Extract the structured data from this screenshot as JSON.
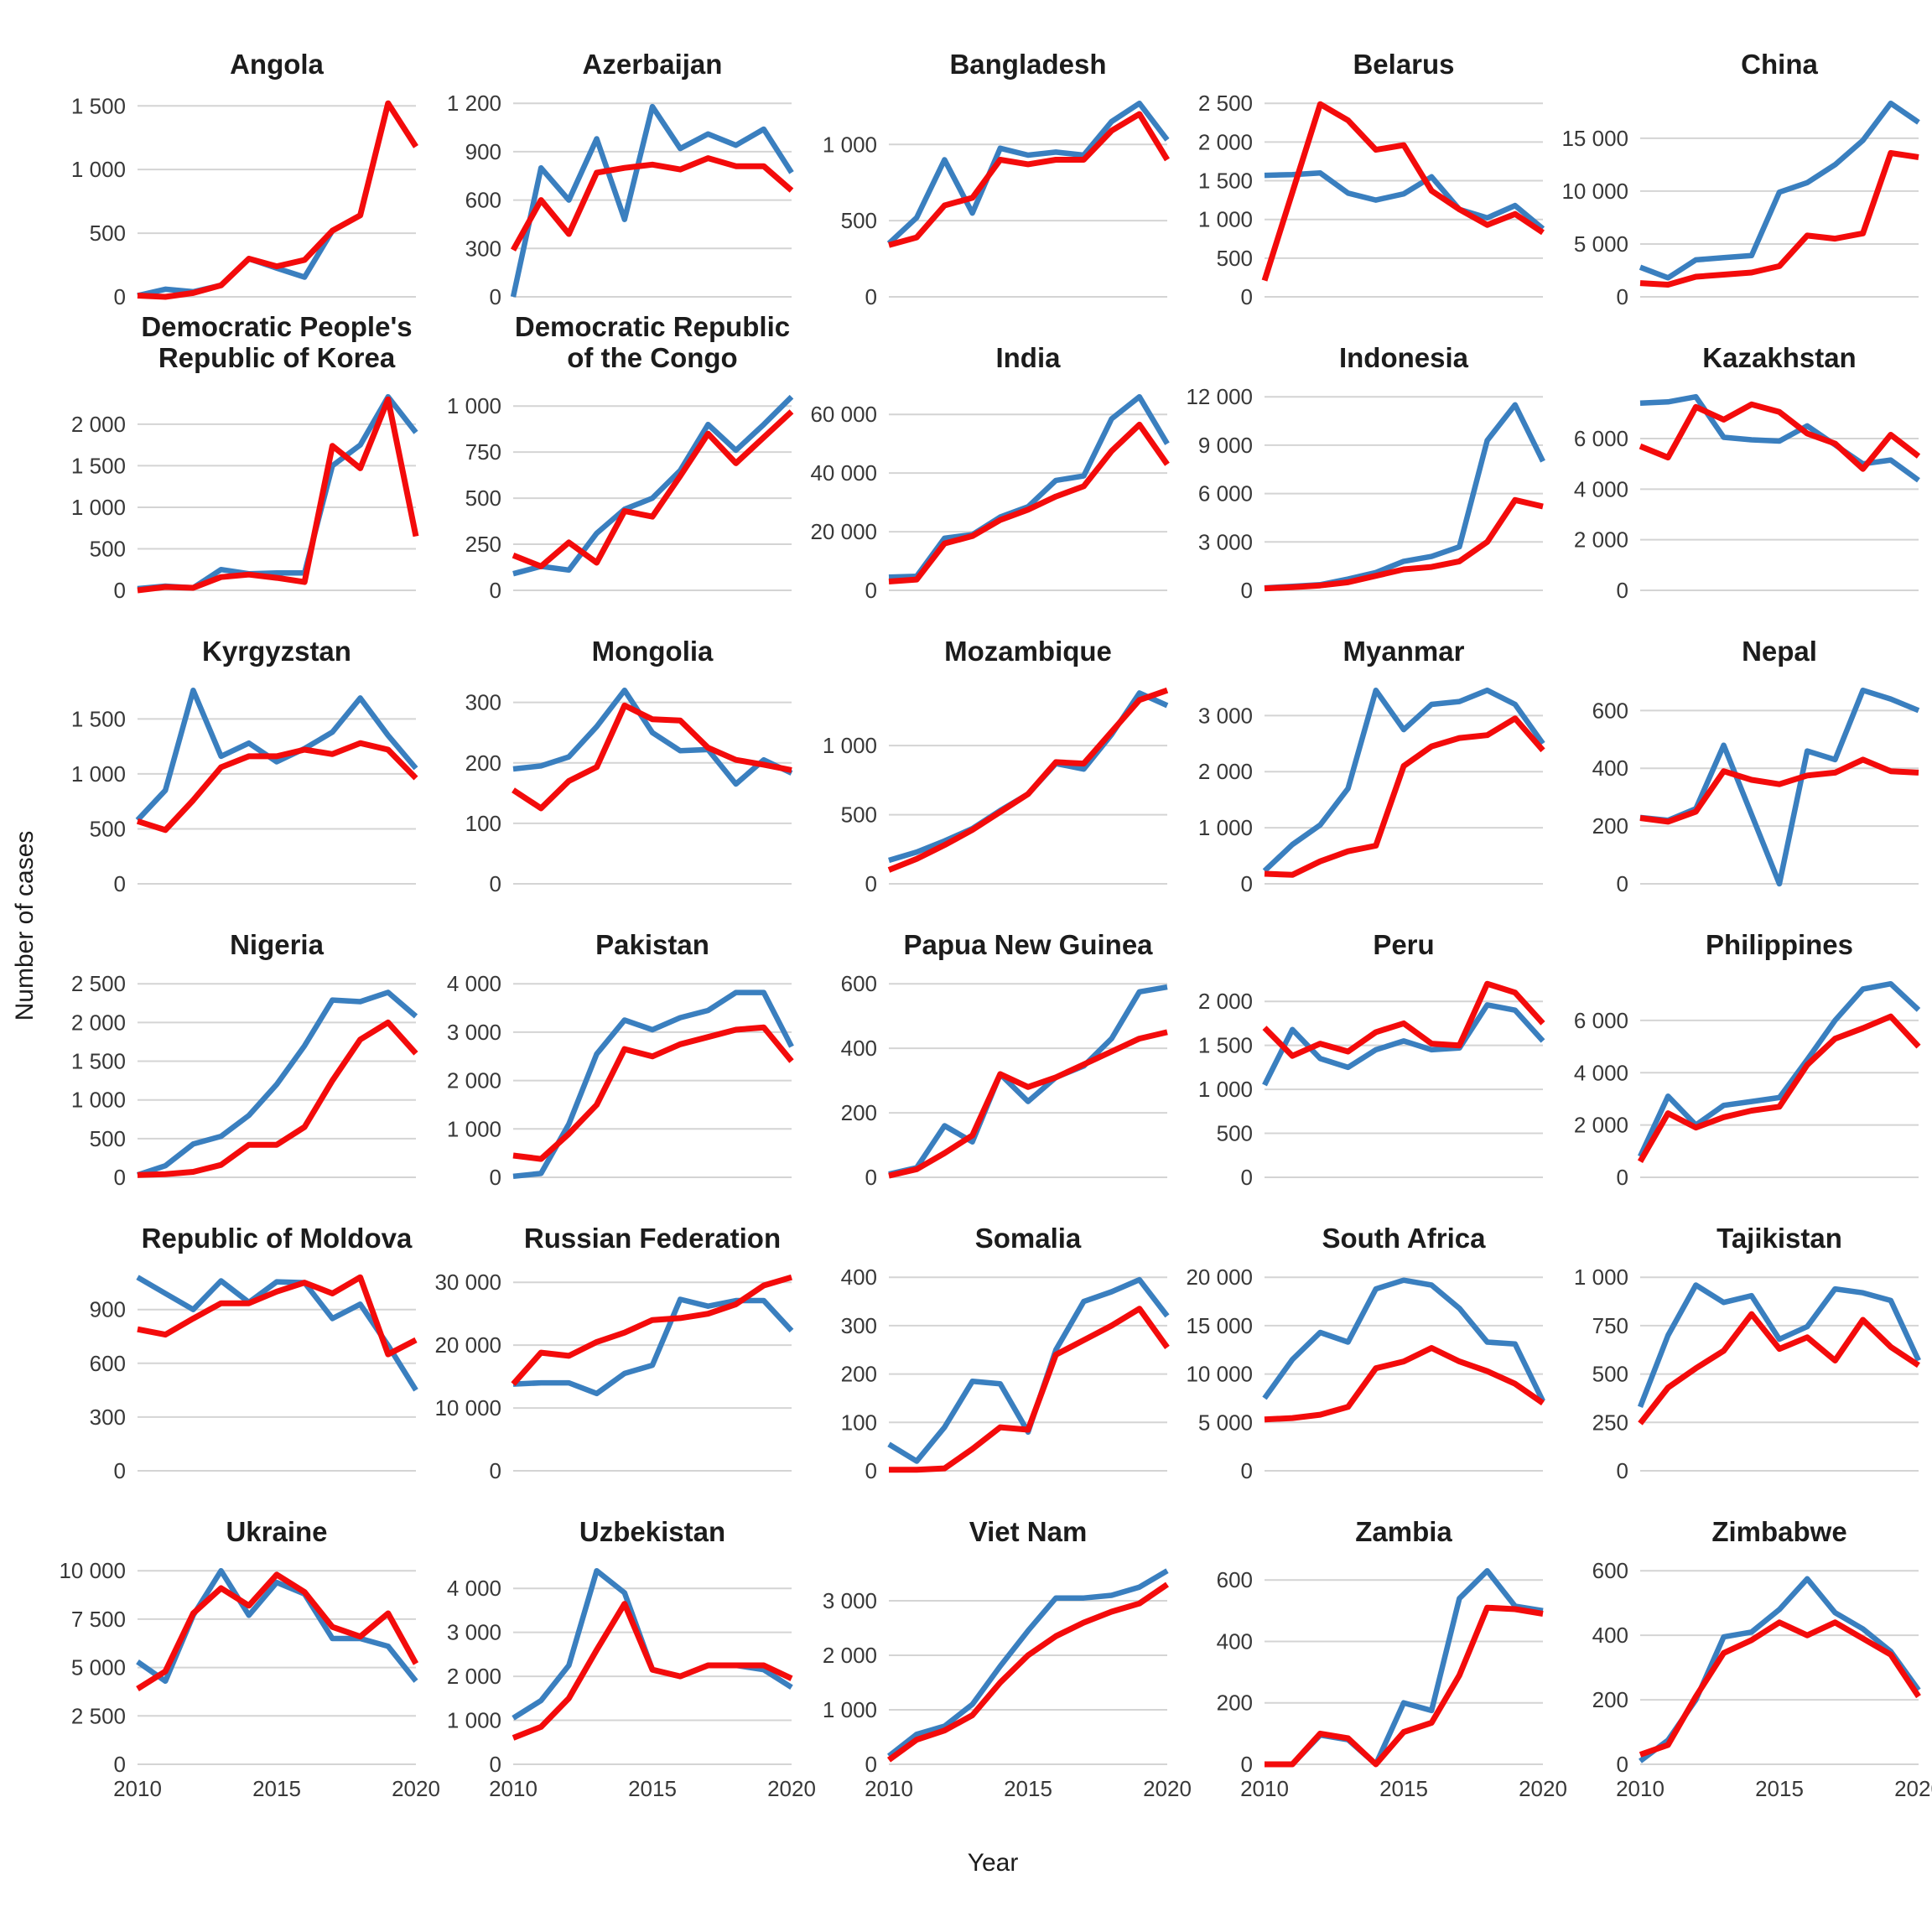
{
  "figure": {
    "ylabel": "Number of cases",
    "xlabel": "Year"
  },
  "style": {
    "blue": "#3a7fbf",
    "red": "#f30b0b",
    "grid_color": "#d4d4d4",
    "tick_color": "#383838",
    "title_color": "#1c1c1c",
    "background": "#ffffff"
  },
  "chart_data": {
    "type": "line",
    "x": [
      2010,
      2011,
      2012,
      2013,
      2014,
      2015,
      2016,
      2017,
      2018,
      2019,
      2020
    ],
    "x_ticks": [
      2010,
      2015,
      2020
    ],
    "legend": "none",
    "grid": "horizontal-only",
    "series_names": [
      "blue-series",
      "red-series"
    ],
    "facets": [
      {
        "title": "Angola",
        "yticks": [
          0,
          500,
          1000,
          1500
        ],
        "blue": [
          10,
          60,
          40,
          90,
          300,
          225,
          155,
          520,
          640,
          1520,
          1180
        ],
        "red": [
          10,
          0,
          30,
          90,
          300,
          240,
          290,
          520,
          640,
          1520,
          1180
        ]
      },
      {
        "title": "Azerbaijan",
        "yticks": [
          0,
          300,
          600,
          900,
          1200
        ],
        "blue": [
          0,
          800,
          600,
          980,
          480,
          1180,
          920,
          1010,
          940,
          1040,
          770
        ],
        "red": [
          290,
          600,
          390,
          770,
          800,
          820,
          790,
          860,
          810,
          810,
          660
        ]
      },
      {
        "title": "Bangladesh",
        "yticks": [
          0,
          500,
          1000
        ],
        "blue": [
          350,
          520,
          900,
          550,
          975,
          930,
          950,
          930,
          1150,
          1270,
          1030
        ],
        "red": [
          340,
          390,
          600,
          650,
          900,
          870,
          900,
          900,
          1090,
          1200,
          900
        ]
      },
      {
        "title": "Belarus",
        "yticks": [
          0,
          500,
          1000,
          1500,
          2000,
          2500
        ],
        "blue": [
          1570,
          1580,
          1600,
          1340,
          1250,
          1330,
          1550,
          1130,
          1020,
          1180,
          880
        ],
        "red": [
          210,
          1350,
          2490,
          2280,
          1900,
          1960,
          1370,
          1130,
          930,
          1070,
          830
        ]
      },
      {
        "title": "China",
        "yticks": [
          0,
          5000,
          10000,
          15000
        ],
        "blue": [
          2800,
          1800,
          3500,
          3700,
          3900,
          9900,
          10800,
          12500,
          14800,
          18300,
          16500
        ],
        "red": [
          1300,
          1150,
          1900,
          2100,
          2300,
          2900,
          5800,
          5500,
          6000,
          13600,
          13200
        ]
      },
      {
        "title": "Democratic People's Republic of Korea",
        "yticks": [
          0,
          500,
          1000,
          1500,
          2000
        ],
        "blue": [
          20,
          50,
          30,
          250,
          200,
          210,
          210,
          1500,
          1750,
          2330,
          1900
        ],
        "red": [
          0,
          40,
          30,
          160,
          190,
          150,
          100,
          1740,
          1470,
          2300,
          650
        ]
      },
      {
        "title": "Democratic Republic of the Congo",
        "yticks": [
          0,
          250,
          500,
          750,
          1000
        ],
        "blue": [
          90,
          130,
          110,
          310,
          440,
          500,
          650,
          900,
          760,
          900,
          1050
        ],
        "red": [
          190,
          130,
          260,
          150,
          430,
          400,
          620,
          850,
          690,
          830,
          970
        ]
      },
      {
        "title": "India",
        "yticks": [
          0,
          20000,
          40000,
          60000
        ],
        "blue": [
          4500,
          4800,
          17800,
          19000,
          25000,
          28500,
          37500,
          39000,
          58500,
          66000,
          50000
        ],
        "red": [
          3000,
          3700,
          16000,
          18500,
          24000,
          27500,
          32000,
          35500,
          47500,
          56500,
          43000
        ]
      },
      {
        "title": "Indonesia",
        "yticks": [
          0,
          3000,
          6000,
          9000,
          12000
        ],
        "blue": [
          150,
          250,
          350,
          700,
          1100,
          1800,
          2100,
          2700,
          9300,
          11500,
          8000
        ],
        "red": [
          120,
          200,
          300,
          500,
          900,
          1300,
          1450,
          1800,
          3000,
          5600,
          5200
        ]
      },
      {
        "title": "Kazakhstan",
        "yticks": [
          0,
          2000,
          4000,
          6000
        ],
        "blue": [
          7400,
          7450,
          7650,
          6050,
          5950,
          5900,
          6500,
          5750,
          5000,
          5150,
          4350
        ],
        "red": [
          5700,
          5250,
          7250,
          6750,
          7350,
          7050,
          6200,
          5800,
          4800,
          6150,
          5300
        ]
      },
      {
        "title": "Kyrgyzstan",
        "yticks": [
          0,
          500,
          1000,
          1500
        ],
        "blue": [
          580,
          850,
          1760,
          1160,
          1280,
          1110,
          1230,
          1380,
          1690,
          1350,
          1050
        ],
        "red": [
          570,
          490,
          760,
          1060,
          1160,
          1160,
          1220,
          1180,
          1280,
          1220,
          960
        ]
      },
      {
        "title": "Mongolia",
        "yticks": [
          0,
          100,
          200,
          300
        ],
        "blue": [
          190,
          195,
          210,
          260,
          320,
          250,
          220,
          222,
          165,
          205,
          183
        ],
        "red": [
          155,
          125,
          170,
          193,
          295,
          272,
          270,
          225,
          205,
          197,
          188
        ]
      },
      {
        "title": "Mozambique",
        "yticks": [
          0,
          500,
          1000
        ],
        "blue": [
          170,
          230,
          310,
          400,
          530,
          650,
          870,
          830,
          1080,
          1380,
          1290
        ],
        "red": [
          100,
          180,
          280,
          390,
          520,
          650,
          880,
          870,
          1100,
          1330,
          1400
        ]
      },
      {
        "title": "Myanmar",
        "yticks": [
          0,
          1000,
          2000,
          3000
        ],
        "blue": [
          230,
          700,
          1050,
          1700,
          3450,
          2750,
          3200,
          3250,
          3450,
          3200,
          2500
        ],
        "red": [
          180,
          160,
          400,
          580,
          680,
          2100,
          2450,
          2600,
          2650,
          2950,
          2380
        ]
      },
      {
        "title": "Nepal",
        "yticks": [
          0,
          200,
          400,
          600
        ],
        "blue": [
          230,
          220,
          260,
          480,
          240,
          0,
          460,
          430,
          670,
          640,
          600
        ],
        "red": [
          228,
          215,
          250,
          390,
          360,
          345,
          375,
          385,
          430,
          390,
          385
        ]
      },
      {
        "title": "Nigeria",
        "yticks": [
          0,
          500,
          1000,
          1500,
          2000,
          2500
        ],
        "blue": [
          30,
          150,
          430,
          530,
          800,
          1200,
          1700,
          2290,
          2270,
          2390,
          2080
        ],
        "red": [
          30,
          40,
          70,
          160,
          420,
          420,
          650,
          1250,
          1780,
          2000,
          1600
        ]
      },
      {
        "title": "Pakistan",
        "yticks": [
          0,
          1000,
          2000,
          3000,
          4000
        ],
        "blue": [
          20,
          80,
          1100,
          2550,
          3250,
          3050,
          3300,
          3450,
          3820,
          3820,
          2700
        ],
        "red": [
          450,
          380,
          900,
          1500,
          2650,
          2500,
          2750,
          2900,
          3050,
          3100,
          2400
        ]
      },
      {
        "title": "Papua New Guinea",
        "yticks": [
          0,
          200,
          400,
          600
        ],
        "blue": [
          10,
          30,
          160,
          110,
          320,
          235,
          310,
          345,
          430,
          575,
          590
        ],
        "red": [
          5,
          25,
          75,
          130,
          320,
          280,
          310,
          350,
          390,
          430,
          450
        ]
      },
      {
        "title": "Peru",
        "yticks": [
          0,
          500,
          1000,
          1500,
          2000
        ],
        "blue": [
          1050,
          1680,
          1350,
          1250,
          1450,
          1550,
          1450,
          1470,
          1960,
          1900,
          1550
        ],
        "red": [
          1700,
          1380,
          1520,
          1430,
          1650,
          1750,
          1520,
          1500,
          2200,
          2100,
          1750
        ]
      },
      {
        "title": "Philippines",
        "yticks": [
          0,
          2000,
          4000,
          6000
        ],
        "blue": [
          800,
          3100,
          2000,
          2750,
          2900,
          3050,
          4500,
          6000,
          7200,
          7400,
          6400
        ],
        "red": [
          600,
          2450,
          1900,
          2300,
          2550,
          2700,
          4300,
          5300,
          5700,
          6150,
          5000
        ]
      },
      {
        "title": "Republic of Moldova",
        "yticks": [
          0,
          300,
          600,
          900
        ],
        "blue": [
          1080,
          990,
          900,
          1060,
          940,
          1055,
          1050,
          850,
          930,
          700,
          450
        ],
        "red": [
          790,
          760,
          850,
          935,
          935,
          1000,
          1050,
          990,
          1080,
          650,
          730
        ]
      },
      {
        "title": "Russian Federation",
        "yticks": [
          0,
          10000,
          20000,
          30000
        ],
        "blue": [
          13800,
          14000,
          14000,
          12300,
          15500,
          16800,
          27300,
          26200,
          27100,
          27100,
          22300
        ],
        "red": [
          13800,
          18800,
          18300,
          20500,
          22000,
          24000,
          24300,
          25000,
          26500,
          29500,
          30800
        ]
      },
      {
        "title": "Somalia",
        "yticks": [
          0,
          100,
          200,
          300,
          400
        ],
        "blue": [
          55,
          20,
          90,
          185,
          180,
          80,
          250,
          350,
          370,
          395,
          320
        ],
        "red": [
          2,
          2,
          5,
          45,
          90,
          85,
          240,
          270,
          300,
          335,
          255
        ]
      },
      {
        "title": "South Africa",
        "yticks": [
          0,
          5000,
          10000,
          15000,
          20000
        ],
        "blue": [
          7500,
          11500,
          14300,
          13300,
          18800,
          19700,
          19200,
          16800,
          13300,
          13100,
          7200
        ],
        "red": [
          5300,
          5450,
          5800,
          6600,
          10600,
          11300,
          12700,
          11300,
          10300,
          9000,
          7000
        ]
      },
      {
        "title": "Tajikistan",
        "yticks": [
          0,
          250,
          500,
          750,
          1000
        ],
        "blue": [
          330,
          700,
          960,
          870,
          905,
          680,
          745,
          940,
          920,
          880,
          570
        ],
        "red": [
          245,
          430,
          530,
          620,
          810,
          630,
          690,
          570,
          780,
          640,
          545
        ]
      },
      {
        "title": "Ukraine",
        "yticks": [
          0,
          2500,
          5000,
          7500,
          10000
        ],
        "blue": [
          5300,
          4300,
          7700,
          10000,
          7700,
          9400,
          8800,
          6500,
          6500,
          6100,
          4300
        ],
        "red": [
          3900,
          4800,
          7800,
          9100,
          8200,
          9800,
          8900,
          7100,
          6600,
          7800,
          5200
        ]
      },
      {
        "title": "Uzbekistan",
        "yticks": [
          0,
          1000,
          2000,
          3000,
          4000
        ],
        "blue": [
          1050,
          1450,
          2250,
          4400,
          3900,
          2150,
          2000,
          2250,
          2250,
          2150,
          1750
        ],
        "red": [
          600,
          850,
          1500,
          2600,
          3650,
          2150,
          2000,
          2250,
          2250,
          2250,
          1950
        ]
      },
      {
        "title": "Viet Nam",
        "yticks": [
          0,
          1000,
          2000,
          3000
        ],
        "blue": [
          150,
          550,
          700,
          1100,
          1800,
          2450,
          3050,
          3050,
          3100,
          3250,
          3550
        ],
        "red": [
          80,
          450,
          620,
          900,
          1500,
          2000,
          2350,
          2600,
          2800,
          2950,
          3300
        ]
      },
      {
        "title": "Zambia",
        "yticks": [
          0,
          200,
          400,
          600
        ],
        "blue": [
          0,
          0,
          95,
          80,
          0,
          200,
          175,
          540,
          630,
          515,
          500
        ],
        "red": [
          0,
          0,
          100,
          85,
          0,
          105,
          135,
          290,
          510,
          505,
          490
        ]
      },
      {
        "title": "Zimbabwe",
        "yticks": [
          0,
          200,
          400,
          600
        ],
        "blue": [
          10,
          75,
          200,
          395,
          410,
          480,
          575,
          470,
          420,
          350,
          230
        ],
        "red": [
          30,
          60,
          210,
          345,
          385,
          440,
          400,
          440,
          390,
          340,
          210
        ]
      }
    ]
  }
}
